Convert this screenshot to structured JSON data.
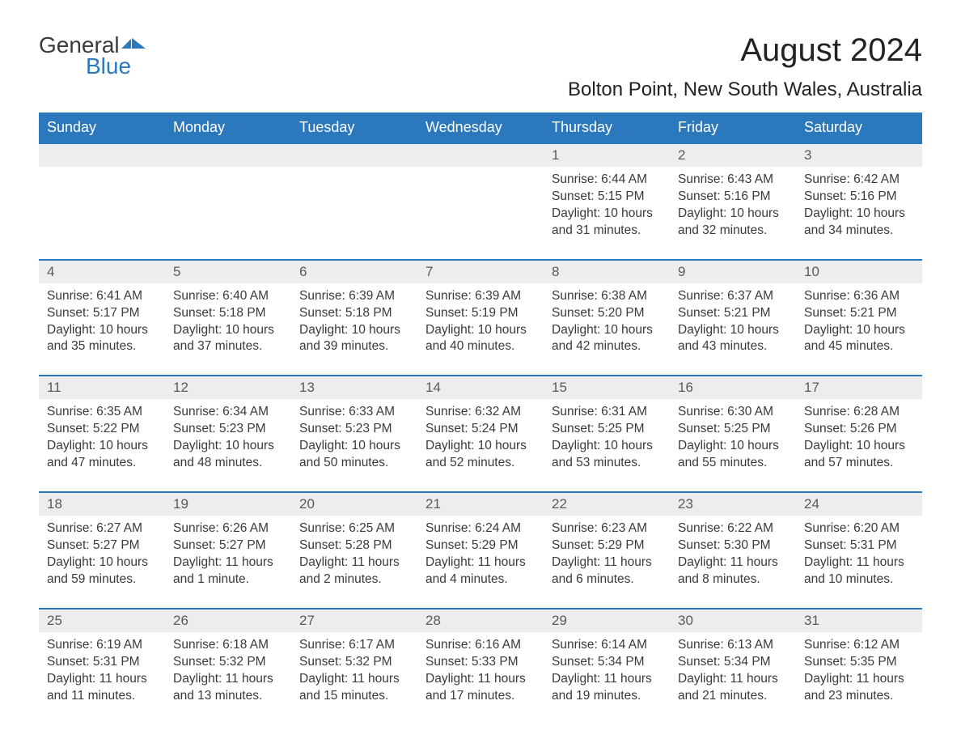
{
  "logo": {
    "text_general": "General",
    "text_blue": "Blue",
    "flag_color": "#2b78bd"
  },
  "title": "August 2024",
  "location": "Bolton Point, New South Wales, Australia",
  "colors": {
    "header_bg": "#2b78bd",
    "header_text": "#ffffff",
    "daynum_bg": "#ededed",
    "daynum_border": "#2b78bd",
    "body_text": "#3a3a3a",
    "page_bg": "#ffffff"
  },
  "day_names": [
    "Sunday",
    "Monday",
    "Tuesday",
    "Wednesday",
    "Thursday",
    "Friday",
    "Saturday"
  ],
  "weeks": [
    {
      "numbers": [
        "",
        "",
        "",
        "",
        "1",
        "2",
        "3"
      ],
      "cells": [
        {},
        {},
        {},
        {},
        {
          "sunrise": "Sunrise: 6:44 AM",
          "sunset": "Sunset: 5:15 PM",
          "daylight1": "Daylight: 10 hours",
          "daylight2": "and 31 minutes."
        },
        {
          "sunrise": "Sunrise: 6:43 AM",
          "sunset": "Sunset: 5:16 PM",
          "daylight1": "Daylight: 10 hours",
          "daylight2": "and 32 minutes."
        },
        {
          "sunrise": "Sunrise: 6:42 AM",
          "sunset": "Sunset: 5:16 PM",
          "daylight1": "Daylight: 10 hours",
          "daylight2": "and 34 minutes."
        }
      ]
    },
    {
      "numbers": [
        "4",
        "5",
        "6",
        "7",
        "8",
        "9",
        "10"
      ],
      "cells": [
        {
          "sunrise": "Sunrise: 6:41 AM",
          "sunset": "Sunset: 5:17 PM",
          "daylight1": "Daylight: 10 hours",
          "daylight2": "and 35 minutes."
        },
        {
          "sunrise": "Sunrise: 6:40 AM",
          "sunset": "Sunset: 5:18 PM",
          "daylight1": "Daylight: 10 hours",
          "daylight2": "and 37 minutes."
        },
        {
          "sunrise": "Sunrise: 6:39 AM",
          "sunset": "Sunset: 5:18 PM",
          "daylight1": "Daylight: 10 hours",
          "daylight2": "and 39 minutes."
        },
        {
          "sunrise": "Sunrise: 6:39 AM",
          "sunset": "Sunset: 5:19 PM",
          "daylight1": "Daylight: 10 hours",
          "daylight2": "and 40 minutes."
        },
        {
          "sunrise": "Sunrise: 6:38 AM",
          "sunset": "Sunset: 5:20 PM",
          "daylight1": "Daylight: 10 hours",
          "daylight2": "and 42 minutes."
        },
        {
          "sunrise": "Sunrise: 6:37 AM",
          "sunset": "Sunset: 5:21 PM",
          "daylight1": "Daylight: 10 hours",
          "daylight2": "and 43 minutes."
        },
        {
          "sunrise": "Sunrise: 6:36 AM",
          "sunset": "Sunset: 5:21 PM",
          "daylight1": "Daylight: 10 hours",
          "daylight2": "and 45 minutes."
        }
      ]
    },
    {
      "numbers": [
        "11",
        "12",
        "13",
        "14",
        "15",
        "16",
        "17"
      ],
      "cells": [
        {
          "sunrise": "Sunrise: 6:35 AM",
          "sunset": "Sunset: 5:22 PM",
          "daylight1": "Daylight: 10 hours",
          "daylight2": "and 47 minutes."
        },
        {
          "sunrise": "Sunrise: 6:34 AM",
          "sunset": "Sunset: 5:23 PM",
          "daylight1": "Daylight: 10 hours",
          "daylight2": "and 48 minutes."
        },
        {
          "sunrise": "Sunrise: 6:33 AM",
          "sunset": "Sunset: 5:23 PM",
          "daylight1": "Daylight: 10 hours",
          "daylight2": "and 50 minutes."
        },
        {
          "sunrise": "Sunrise: 6:32 AM",
          "sunset": "Sunset: 5:24 PM",
          "daylight1": "Daylight: 10 hours",
          "daylight2": "and 52 minutes."
        },
        {
          "sunrise": "Sunrise: 6:31 AM",
          "sunset": "Sunset: 5:25 PM",
          "daylight1": "Daylight: 10 hours",
          "daylight2": "and 53 minutes."
        },
        {
          "sunrise": "Sunrise: 6:30 AM",
          "sunset": "Sunset: 5:25 PM",
          "daylight1": "Daylight: 10 hours",
          "daylight2": "and 55 minutes."
        },
        {
          "sunrise": "Sunrise: 6:28 AM",
          "sunset": "Sunset: 5:26 PM",
          "daylight1": "Daylight: 10 hours",
          "daylight2": "and 57 minutes."
        }
      ]
    },
    {
      "numbers": [
        "18",
        "19",
        "20",
        "21",
        "22",
        "23",
        "24"
      ],
      "cells": [
        {
          "sunrise": "Sunrise: 6:27 AM",
          "sunset": "Sunset: 5:27 PM",
          "daylight1": "Daylight: 10 hours",
          "daylight2": "and 59 minutes."
        },
        {
          "sunrise": "Sunrise: 6:26 AM",
          "sunset": "Sunset: 5:27 PM",
          "daylight1": "Daylight: 11 hours",
          "daylight2": "and 1 minute."
        },
        {
          "sunrise": "Sunrise: 6:25 AM",
          "sunset": "Sunset: 5:28 PM",
          "daylight1": "Daylight: 11 hours",
          "daylight2": "and 2 minutes."
        },
        {
          "sunrise": "Sunrise: 6:24 AM",
          "sunset": "Sunset: 5:29 PM",
          "daylight1": "Daylight: 11 hours",
          "daylight2": "and 4 minutes."
        },
        {
          "sunrise": "Sunrise: 6:23 AM",
          "sunset": "Sunset: 5:29 PM",
          "daylight1": "Daylight: 11 hours",
          "daylight2": "and 6 minutes."
        },
        {
          "sunrise": "Sunrise: 6:22 AM",
          "sunset": "Sunset: 5:30 PM",
          "daylight1": "Daylight: 11 hours",
          "daylight2": "and 8 minutes."
        },
        {
          "sunrise": "Sunrise: 6:20 AM",
          "sunset": "Sunset: 5:31 PM",
          "daylight1": "Daylight: 11 hours",
          "daylight2": "and 10 minutes."
        }
      ]
    },
    {
      "numbers": [
        "25",
        "26",
        "27",
        "28",
        "29",
        "30",
        "31"
      ],
      "cells": [
        {
          "sunrise": "Sunrise: 6:19 AM",
          "sunset": "Sunset: 5:31 PM",
          "daylight1": "Daylight: 11 hours",
          "daylight2": "and 11 minutes."
        },
        {
          "sunrise": "Sunrise: 6:18 AM",
          "sunset": "Sunset: 5:32 PM",
          "daylight1": "Daylight: 11 hours",
          "daylight2": "and 13 minutes."
        },
        {
          "sunrise": "Sunrise: 6:17 AM",
          "sunset": "Sunset: 5:32 PM",
          "daylight1": "Daylight: 11 hours",
          "daylight2": "and 15 minutes."
        },
        {
          "sunrise": "Sunrise: 6:16 AM",
          "sunset": "Sunset: 5:33 PM",
          "daylight1": "Daylight: 11 hours",
          "daylight2": "and 17 minutes."
        },
        {
          "sunrise": "Sunrise: 6:14 AM",
          "sunset": "Sunset: 5:34 PM",
          "daylight1": "Daylight: 11 hours",
          "daylight2": "and 19 minutes."
        },
        {
          "sunrise": "Sunrise: 6:13 AM",
          "sunset": "Sunset: 5:34 PM",
          "daylight1": "Daylight: 11 hours",
          "daylight2": "and 21 minutes."
        },
        {
          "sunrise": "Sunrise: 6:12 AM",
          "sunset": "Sunset: 5:35 PM",
          "daylight1": "Daylight: 11 hours",
          "daylight2": "and 23 minutes."
        }
      ]
    }
  ]
}
